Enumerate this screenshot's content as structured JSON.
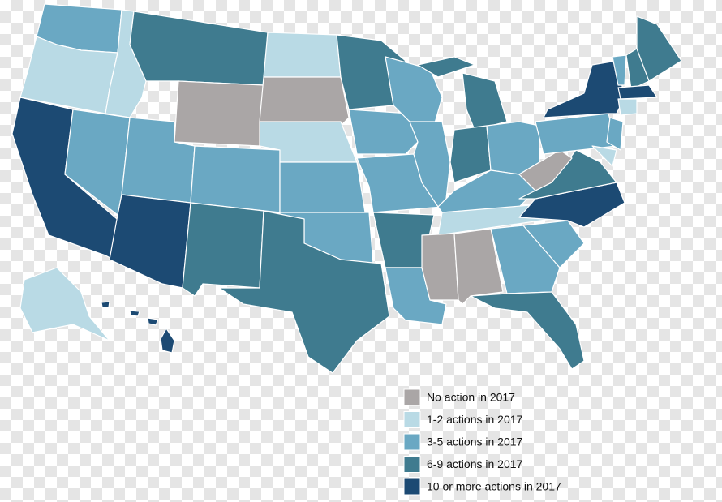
{
  "legend": {
    "items": [
      {
        "label": "No action in 2017",
        "color": "#aaa6a6"
      },
      {
        "label": "1-2 actions in 2017",
        "color": "#b9dae5"
      },
      {
        "label": "3-5 actions in 2017",
        "color": "#6aa8c3"
      },
      {
        "label": "6-9 actions in 2017",
        "color": "#3f7b8f"
      },
      {
        "label": "10 or more actions in 2017",
        "color": "#1c4a73"
      }
    ]
  }
}
